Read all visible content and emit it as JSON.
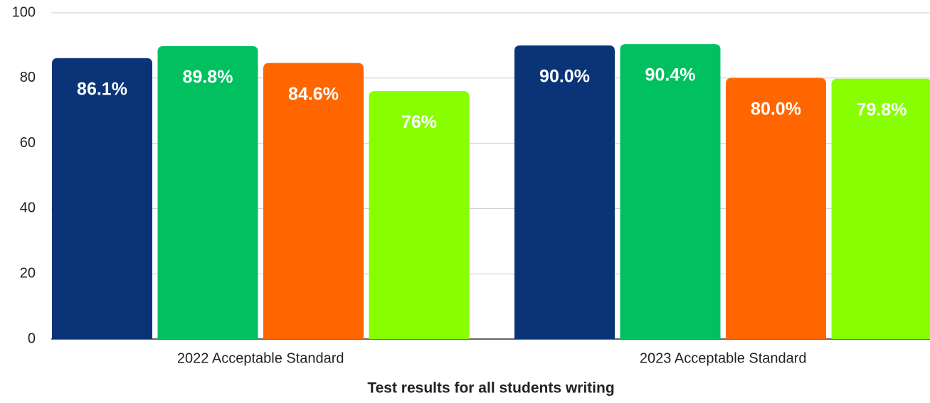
{
  "chart_data": {
    "type": "bar",
    "xlabel": "Test results for all students writing",
    "categories": [
      "2022 Acceptable Standard",
      "2023 Acceptable Standard"
    ],
    "series": [
      {
        "color": "#0b3478",
        "values": [
          86.1,
          90.0
        ],
        "value_labels": [
          "86.1%",
          "90.0%"
        ]
      },
      {
        "color": "#00c060",
        "values": [
          89.8,
          90.4
        ],
        "value_labels": [
          "89.8%",
          "90.4%"
        ]
      },
      {
        "color": "#ff6600",
        "values": [
          84.6,
          80.0
        ],
        "value_labels": [
          "84.6%",
          "80.0%"
        ]
      },
      {
        "color": "#88ff00",
        "values": [
          76,
          79.8
        ],
        "value_labels": [
          "76%",
          "79.8%"
        ]
      }
    ],
    "ylim": [
      0,
      100
    ],
    "yticks": [
      0,
      20,
      40,
      60,
      80,
      100
    ],
    "grid": true
  }
}
